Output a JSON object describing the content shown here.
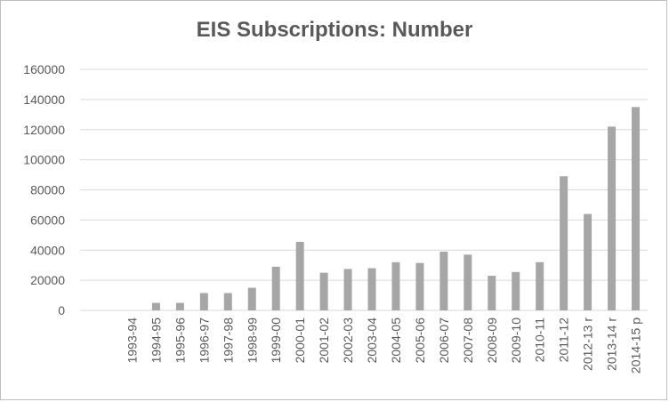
{
  "chart_data": {
    "type": "bar",
    "title": "EIS Subscriptions: Number",
    "xlabel": "",
    "ylabel": "",
    "ylim": [
      0,
      160000
    ],
    "yticks": [
      "0",
      "20000",
      "40000",
      "60000",
      "80000",
      "100000",
      "120000",
      "140000",
      "160000"
    ],
    "grid": true,
    "legend": "none",
    "bar_color": "#a6a6a6",
    "categories": [
      "1993-94",
      "1994-95",
      "1995-96",
      "1996-97",
      "1997-98",
      "1998-99",
      "1999-00",
      "2000-01",
      "2001-02",
      "2002-03",
      "2003-04",
      "2004-05",
      "2005-06",
      "2006-07",
      "2007-08",
      "2008-09",
      "2009-10",
      "2010-11",
      "2011-12",
      "2012-13 r",
      "2013-14 r",
      "2014-15 p"
    ],
    "values": [
      0,
      5000,
      5000,
      11500,
      11500,
      15000,
      29000,
      45500,
      25000,
      27500,
      28000,
      32000,
      31500,
      39000,
      37000,
      23000,
      25500,
      32000,
      89000,
      64000,
      122000,
      135000
    ]
  }
}
